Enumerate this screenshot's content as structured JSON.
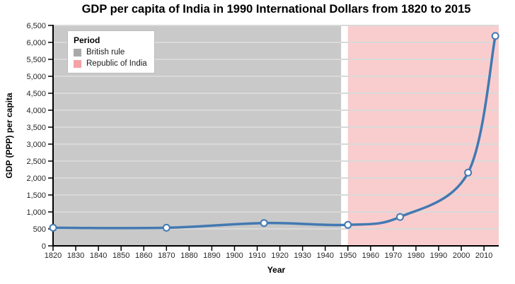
{
  "chart_data": {
    "type": "line",
    "title": "GDP per capita of India in 1990 International Dollars from 1820 to 2015",
    "xlabel": "Year",
    "ylabel": "GDP (PPP) per capita",
    "series": [
      {
        "name": "GDP per capita of India",
        "x": [
          1820,
          1870,
          1913,
          1950,
          1973,
          2003,
          2015
        ],
        "y": [
          533,
          533,
          673,
          619,
          853,
          2160,
          6190
        ]
      }
    ],
    "xlim": [
      1820,
      2016.5
    ],
    "ylim": [
      0,
      6500
    ],
    "x_ticks": [
      1820,
      1830,
      1840,
      1850,
      1860,
      1870,
      1880,
      1890,
      1900,
      1910,
      1920,
      1930,
      1940,
      1950,
      1960,
      1970,
      1980,
      1990,
      2000,
      2010
    ],
    "y_ticks": [
      0,
      500,
      1000,
      1500,
      2000,
      2500,
      3000,
      3500,
      4000,
      4500,
      5000,
      5500,
      6000,
      6500
    ],
    "grid": true,
    "grid_color": "#d9d9d9",
    "axis_color": "#000000",
    "tick_label_color": "#262626",
    "line_color": "#4379b2",
    "marker_fill": "#ffffff",
    "regions": [
      {
        "label": "British rule",
        "from": 1820,
        "to": 1947,
        "color": "#c9c9c9"
      },
      {
        "label": "Republic of India",
        "from": 1950,
        "to": 2016.5,
        "color": "#f9cdce"
      }
    ],
    "legend": {
      "title": "Period",
      "position": "top-left",
      "items": [
        {
          "label": "British rule",
          "swatch_color": "#a9a9a9"
        },
        {
          "label": "Republic of India",
          "swatch_color": "#f4a2a4"
        }
      ]
    }
  }
}
